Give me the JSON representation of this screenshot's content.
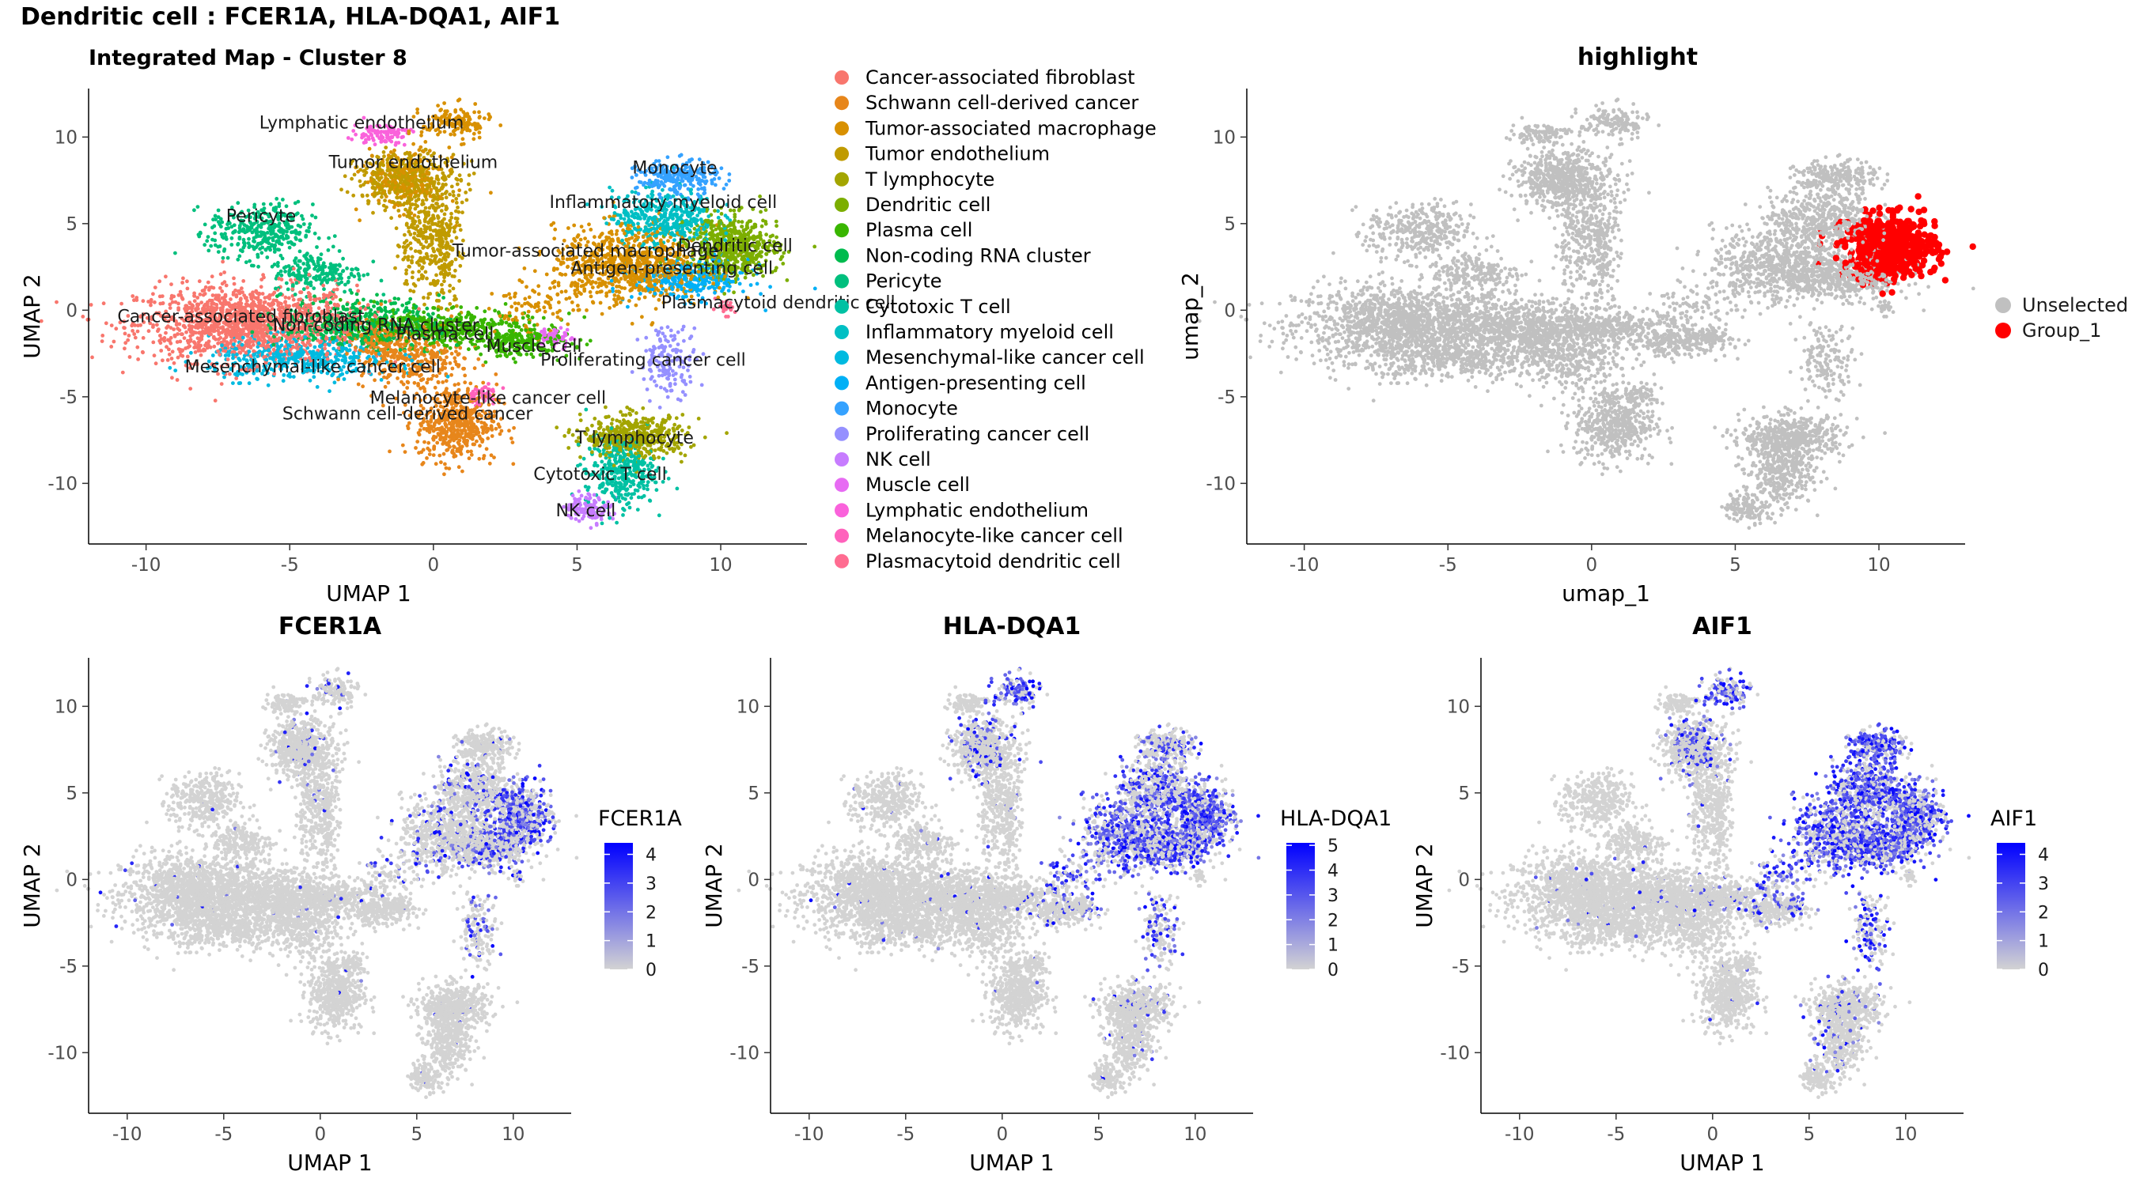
{
  "page_title": "Dendritic cell : FCER1A, HLA-DQA1, AIF1",
  "chart_data": [
    {
      "id": "umap",
      "type": "scatter",
      "title": "Integrated Map - Cluster 8",
      "xlabel": "UMAP 1",
      "ylabel": "UMAP 2",
      "xlim": [
        -12,
        13
      ],
      "ylim": [
        -13.5,
        12.8
      ],
      "xticks": [
        -10,
        -5,
        0,
        5,
        10
      ],
      "yticks": [
        -10,
        -5,
        0,
        5,
        10
      ],
      "legend_position": "right",
      "clusters": [
        {
          "name": "Cancer-associated fibroblast",
          "color": "#F8766D",
          "x": -6.5,
          "y": -0.8,
          "label": [
            -6.7,
            -0.7
          ]
        },
        {
          "name": "Schwann cell-derived cancer",
          "color": "#E7861B",
          "x": 0.8,
          "y": -6.5,
          "label": [
            -0.9,
            -6.3
          ]
        },
        {
          "name": "Tumor-associated macrophage",
          "color": "#D89000",
          "x": 7.0,
          "y": 2.8,
          "label": [
            5.3,
            3.1
          ]
        },
        {
          "name": "Tumor endothelium",
          "color": "#C09B00",
          "x": -0.5,
          "y": 7.5,
          "label": [
            -0.7,
            8.2
          ]
        },
        {
          "name": "T lymphocyte",
          "color": "#A3A500",
          "x": 7.0,
          "y": -7.5,
          "label": [
            7.0,
            -7.7
          ]
        },
        {
          "name": "Dendritic cell",
          "color": "#7CAE00",
          "x": 10.5,
          "y": 3.6,
          "label": [
            10.5,
            3.4
          ]
        },
        {
          "name": "Plasma cell",
          "color": "#39B600",
          "x": 0.5,
          "y": -1.3,
          "label": [
            0.4,
            -1.7
          ]
        },
        {
          "name": "Non-coding RNA cluster",
          "color": "#00BB4E",
          "x": -2.5,
          "y": -0.8,
          "label": [
            -2.0,
            -1.2
          ]
        },
        {
          "name": "Pericyte",
          "color": "#00BF7D",
          "x": -6.0,
          "y": 4.3,
          "label": [
            -6.0,
            5.1
          ]
        },
        {
          "name": "Cytotoxic T cell",
          "color": "#00C1A3",
          "x": 6.5,
          "y": -9.5,
          "label": [
            5.8,
            -9.8
          ]
        },
        {
          "name": "Inflammatory myeloid cell",
          "color": "#00BFC4",
          "x": 8.0,
          "y": 5.5,
          "label": [
            8.0,
            5.9
          ]
        },
        {
          "name": "Mesenchymal-like cancer cell",
          "color": "#00BAE0",
          "x": -4.5,
          "y": -2.7,
          "label": [
            -4.2,
            -3.6
          ]
        },
        {
          "name": "Antigen-presenting cell",
          "color": "#00B0F6",
          "x": 9.0,
          "y": 2.0,
          "label": [
            8.3,
            2.1
          ]
        },
        {
          "name": "Monocyte",
          "color": "#35A2FF",
          "x": 8.5,
          "y": 7.8,
          "label": [
            8.4,
            7.9
          ]
        },
        {
          "name": "Proliferating cancer cell",
          "color": "#9590FF",
          "x": 8.2,
          "y": -3.0,
          "label": [
            7.3,
            -3.2
          ]
        },
        {
          "name": "NK cell",
          "color": "#C77CFF",
          "x": 5.4,
          "y": -11.5,
          "label": [
            5.3,
            -11.9
          ]
        },
        {
          "name": "Muscle cell",
          "color": "#E76BF3",
          "x": 4.2,
          "y": -1.6,
          "label": [
            3.5,
            -2.4
          ]
        },
        {
          "name": "Lymphatic endothelium",
          "color": "#FA62DB",
          "x": -1.8,
          "y": 10.2,
          "label": [
            -2.5,
            10.5
          ]
        },
        {
          "name": "Melanocyte-like cancer cell",
          "color": "#FF62BC",
          "x": 1.7,
          "y": -4.8,
          "label": [
            1.9,
            -5.4
          ]
        },
        {
          "name": "Plasmacytoid dendritic cell",
          "color": "#FF6C91",
          "x": 10.2,
          "y": 0.1,
          "label": [
            12.0,
            0.1
          ]
        }
      ]
    },
    {
      "id": "highlight",
      "type": "scatter",
      "title": "highlight",
      "xlabel": "umap_1",
      "ylabel": "umap_2",
      "xlim": [
        -12,
        13
      ],
      "ylim": [
        -13.5,
        12.8
      ],
      "xticks": [
        -10,
        -5,
        0,
        5,
        10
      ],
      "yticks": [
        -10,
        -5,
        0,
        5,
        10
      ],
      "legend_position": "right",
      "series": [
        {
          "name": "Unselected",
          "color": "#C0C0C0"
        },
        {
          "name": "Group_1",
          "color": "#FF0000",
          "cluster": "Dendritic cell"
        }
      ]
    },
    {
      "id": "FCER1A",
      "type": "scatter",
      "title": "FCER1A",
      "xlabel": "UMAP 1",
      "ylabel": "UMAP 2",
      "xlim": [
        -12,
        13
      ],
      "ylim": [
        -13.5,
        12.8
      ],
      "xticks": [
        -10,
        -5,
        0,
        5,
        10
      ],
      "yticks": [
        -10,
        -5,
        0,
        5,
        10
      ],
      "colorbar": {
        "title": "FCER1A",
        "min": 0,
        "max": 4.4,
        "ticks": [
          0,
          1,
          2,
          3,
          4
        ],
        "low": "#D3D3D3",
        "high": "#0000FF"
      },
      "expression": {
        "Dendritic cell": 0.55,
        "Antigen-presenting cell": 0.4,
        "Tumor-associated macrophage": 0.14,
        "Inflammatory myeloid cell": 0.12,
        "Monocyte": 0.05,
        "Proliferating cancer cell": 0.2,
        "Plasmacytoid dendritic cell": 0.25
      }
    },
    {
      "id": "HLA-DQA1",
      "type": "scatter",
      "title": "HLA-DQA1",
      "xlabel": "UMAP 1",
      "ylabel": "UMAP 2",
      "xlim": [
        -12,
        13
      ],
      "ylim": [
        -13.5,
        12.8
      ],
      "xticks": [
        -10,
        -5,
        0,
        5,
        10
      ],
      "yticks": [
        -10,
        -5,
        0,
        5,
        10
      ],
      "colorbar": {
        "title": "HLA-DQA1",
        "min": 0,
        "max": 5.1,
        "ticks": [
          0,
          1,
          2,
          3,
          4,
          5
        ],
        "low": "#D3D3D3",
        "high": "#0000FF"
      },
      "expression": {
        "Dendritic cell": 0.65,
        "Antigen-presenting cell": 0.6,
        "Tumor-associated macrophage": 0.55,
        "Inflammatory myeloid cell": 0.45,
        "Monocyte": 0.3,
        "Proliferating cancer cell": 0.35,
        "Muscle cell": 0.15,
        "T lymphocyte": 0.08,
        "Cytotoxic T cell": 0.05,
        "Plasma cell": 0.06
      }
    },
    {
      "id": "AIF1",
      "type": "scatter",
      "title": "AIF1",
      "xlabel": "UMAP 1",
      "ylabel": "UMAP 2",
      "xlim": [
        -12,
        13
      ],
      "ylim": [
        -13.5,
        12.8
      ],
      "xticks": [
        -10,
        -5,
        0,
        5,
        10
      ],
      "yticks": [
        -10,
        -5,
        0,
        5,
        10
      ],
      "colorbar": {
        "title": "AIF1",
        "min": 0,
        "max": 4.4,
        "ticks": [
          0,
          1,
          2,
          3,
          4
        ],
        "low": "#D3D3D3",
        "high": "#0000FF"
      },
      "expression": {
        "Dendritic cell": 0.5,
        "Antigen-presenting cell": 0.6,
        "Tumor-associated macrophage": 0.62,
        "Inflammatory myeloid cell": 0.65,
        "Monocyte": 0.7,
        "Proliferating cancer cell": 0.4,
        "Muscle cell": 0.3,
        "Plasma cell": 0.12,
        "Cytotoxic T cell": 0.08,
        "T lymphocyte": 0.08
      }
    }
  ]
}
